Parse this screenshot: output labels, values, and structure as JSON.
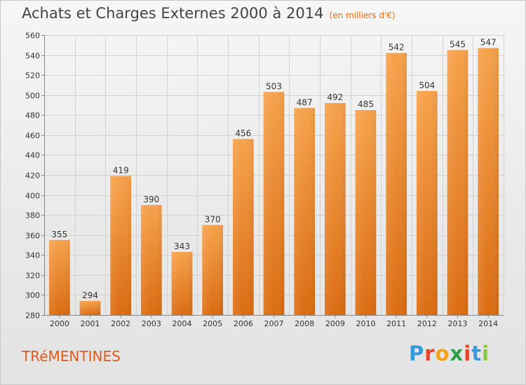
{
  "header": {
    "title": "Achats et Charges Externes 2000 à 2014",
    "subtitle": "(en milliers d'€)"
  },
  "footer": {
    "commune": "TRéMENTINES",
    "logo_letters": [
      "P",
      "r",
      "o",
      "x",
      "i",
      "t",
      "i"
    ],
    "logo_colors": [
      "#3a9ad9",
      "#e2462c",
      "#f2a21c",
      "#2e9e48",
      "#e2462c",
      "#3a9ad9",
      "#8cc63f"
    ]
  },
  "colors": {
    "bar_top": "#f6a24c",
    "bar_bottom": "#db6c12",
    "grid": "#d2d2d2",
    "axis_text": "#333333"
  },
  "chart_data": {
    "type": "bar",
    "title": "Achats et Charges Externes 2000 à 2014",
    "subtitle": "(en milliers d'€)",
    "categories": [
      "2000",
      "2001",
      "2002",
      "2003",
      "2004",
      "2005",
      "2006",
      "2007",
      "2008",
      "2009",
      "2010",
      "2011",
      "2012",
      "2013",
      "2014"
    ],
    "values": [
      355,
      294,
      419,
      390,
      343,
      370,
      456,
      503,
      487,
      492,
      485,
      542,
      504,
      545,
      547
    ],
    "ylim": [
      280,
      560
    ],
    "yticks": [
      280,
      300,
      320,
      340,
      360,
      380,
      400,
      420,
      440,
      460,
      480,
      500,
      520,
      540,
      560
    ],
    "grid": true,
    "data_labels": true
  }
}
